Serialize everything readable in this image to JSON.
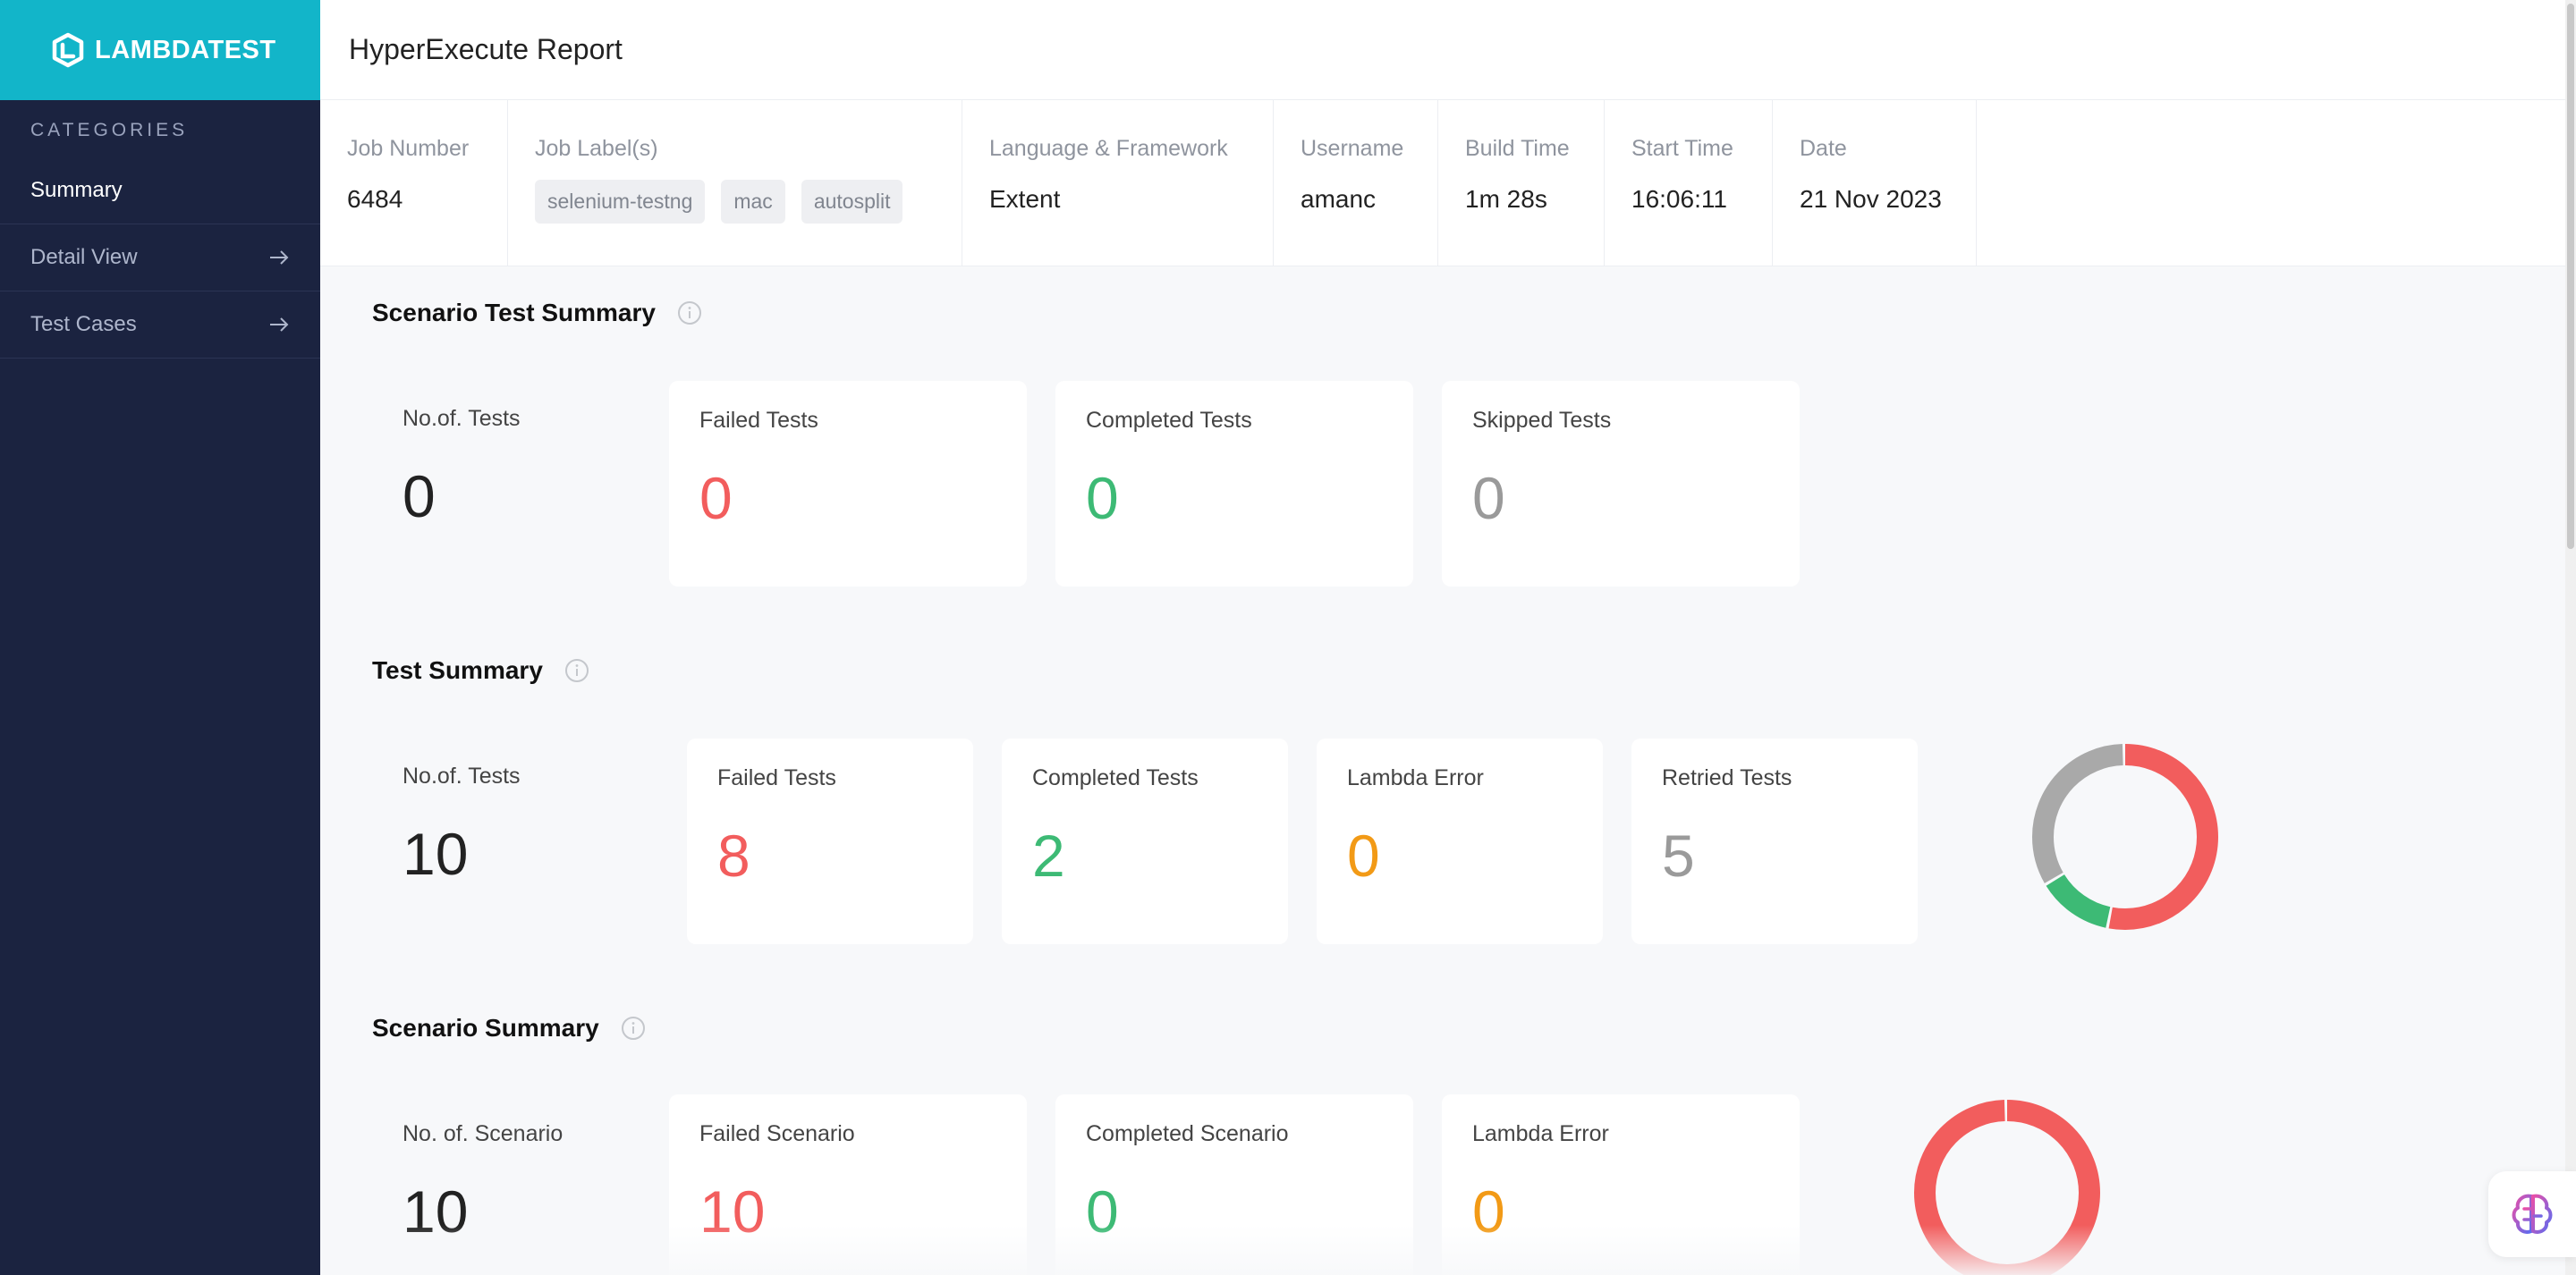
{
  "brand": {
    "name": "LAMBDATEST"
  },
  "sidebar": {
    "section_title": "CATEGORIES",
    "items": [
      {
        "label": "Summary",
        "active": true
      },
      {
        "label": "Detail View",
        "arrow": "arrow-right-icon"
      },
      {
        "label": "Test Cases",
        "arrow": "arrow-right-icon"
      }
    ]
  },
  "header": {
    "title": "HyperExecute Report"
  },
  "info": {
    "job_number": {
      "label": "Job Number",
      "value": "6484"
    },
    "job_labels": {
      "label": "Job Label(s)",
      "tags": [
        "selenium-testng",
        "mac",
        "autosplit"
      ]
    },
    "language": {
      "label": "Language & Framework",
      "value": "Extent"
    },
    "username": {
      "label": "Username",
      "value": "amanc"
    },
    "build_time": {
      "label": "Build Time",
      "value": "1m 28s"
    },
    "start_time": {
      "label": "Start Time",
      "value": "16:06:11"
    },
    "date": {
      "label": "Date",
      "value": "21 Nov 2023"
    }
  },
  "scenario_test_summary": {
    "title": "Scenario Test Summary",
    "cards": [
      {
        "label": "No.of. Tests",
        "value": "0"
      },
      {
        "label": "Failed Tests",
        "value": "0"
      },
      {
        "label": "Completed Tests",
        "value": "0"
      },
      {
        "label": "Skipped Tests",
        "value": "0"
      }
    ]
  },
  "test_summary": {
    "title": "Test Summary",
    "cards": [
      {
        "label": "No.of. Tests",
        "value": "10"
      },
      {
        "label": "Failed Tests",
        "value": "8"
      },
      {
        "label": "Completed Tests",
        "value": "2"
      },
      {
        "label": "Lambda Error",
        "value": "0"
      },
      {
        "label": "Retried Tests",
        "value": "5"
      }
    ]
  },
  "scenario_summary": {
    "title": "Scenario Summary",
    "cards": [
      {
        "label": "No. of. Scenario",
        "value": "10"
      },
      {
        "label": "Failed Scenario",
        "value": "10"
      },
      {
        "label": "Completed Scenario",
        "value": "0"
      },
      {
        "label": "Lambda Error",
        "value": "0"
      }
    ]
  },
  "colors": {
    "failed": "#f25d5d",
    "completed": "#3dba75",
    "skipped": "#a9a9a9",
    "lambda_error": "#f29a16",
    "sidebar_bg": "#1b2340",
    "brand_bg": "#12b5c9"
  },
  "chart_data": [
    {
      "type": "pie",
      "donut": true,
      "categories": [
        "Failed",
        "Completed",
        "Retried"
      ],
      "values": [
        8,
        2,
        5
      ]
    },
    {
      "type": "pie",
      "donut": true,
      "categories": [
        "Failed",
        "Completed"
      ],
      "values": [
        10,
        0
      ]
    }
  ]
}
